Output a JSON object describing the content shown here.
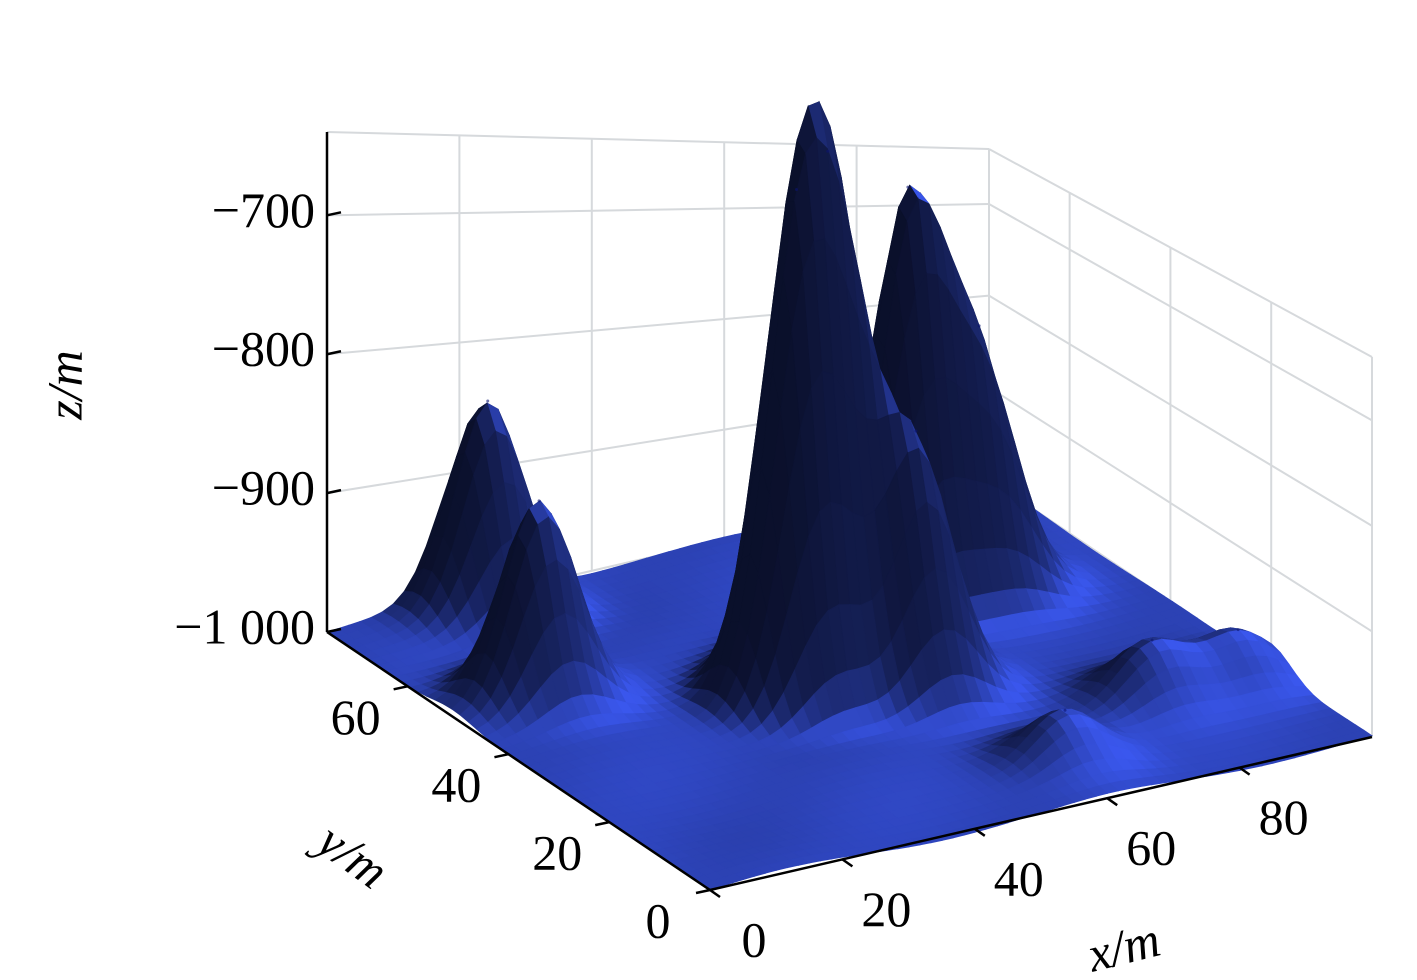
{
  "chart_data": {
    "type": "surface",
    "xlabel": "x/m",
    "ylabel": "y/m",
    "zlabel": "z/m",
    "xlim": [
      0,
      100
    ],
    "ylim": [
      0,
      76
    ],
    "zlim": [
      -1000,
      -640
    ],
    "xticks": [
      0,
      20,
      40,
      60,
      80
    ],
    "yticks": [
      0,
      20,
      40,
      60
    ],
    "zticks": [
      {
        "value": -1000,
        "label": "−1 000"
      },
      {
        "value": -900,
        "label": "−900"
      },
      {
        "value": -800,
        "label": "−800"
      },
      {
        "value": -700,
        "label": "−700"
      }
    ],
    "grid": true,
    "color": "#3a57ee",
    "peaks": [
      {
        "x": 22,
        "y": 73,
        "z": -840
      },
      {
        "x": 13,
        "y": 51,
        "z": -855
      },
      {
        "x": 42,
        "y": 38,
        "z": -690
      },
      {
        "x": 49,
        "y": 41,
        "z": -670
      },
      {
        "x": 71,
        "y": 54,
        "z": -650
      },
      {
        "x": 81,
        "y": 53,
        "z": -800
      },
      {
        "x": 57,
        "y": 34,
        "z": -810
      },
      {
        "x": 62,
        "y": 11,
        "z": -960
      },
      {
        "x": 82,
        "y": 20,
        "z": -953
      },
      {
        "x": 95,
        "y": 20,
        "z": -957
      }
    ]
  }
}
